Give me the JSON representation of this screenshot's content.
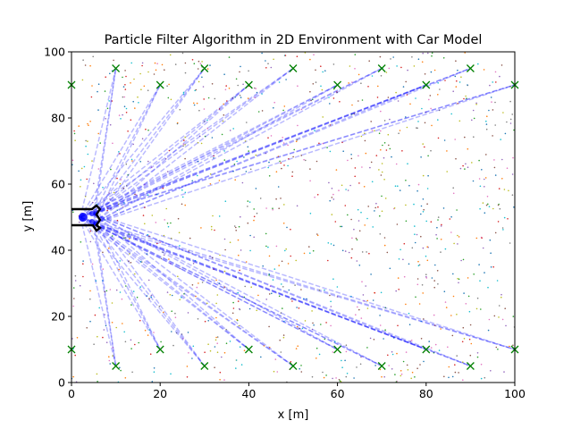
{
  "chart_data": {
    "type": "scatter",
    "title": "Particle Filter Algorithm in 2D Environment with Car Model",
    "xlabel": "x [m]",
    "ylabel": "y [m]",
    "xlim": [
      0,
      100
    ],
    "ylim": [
      0,
      100
    ],
    "xticks": [
      "0",
      "20",
      "40",
      "60",
      "80",
      "100"
    ],
    "yticks": [
      "0",
      "20",
      "40",
      "60",
      "80",
      "100"
    ],
    "grid": false,
    "colors": {
      "landmark": "#008000",
      "ray": "#0000ff",
      "car_outline": "#000000",
      "car_fill": "#0000ff",
      "particle_palette": [
        "#1f77b4",
        "#ff7f0e",
        "#2ca02c",
        "#d62728",
        "#9467bd",
        "#8c564b",
        "#e377c2",
        "#7f7f7f",
        "#bcbd22",
        "#17becf"
      ]
    },
    "landmarks": [
      {
        "x": 0,
        "y": 90
      },
      {
        "x": 10,
        "y": 95
      },
      {
        "x": 20,
        "y": 90
      },
      {
        "x": 30,
        "y": 95
      },
      {
        "x": 40,
        "y": 90
      },
      {
        "x": 50,
        "y": 95
      },
      {
        "x": 60,
        "y": 90
      },
      {
        "x": 70,
        "y": 95
      },
      {
        "x": 80,
        "y": 90
      },
      {
        "x": 90,
        "y": 95
      },
      {
        "x": 100,
        "y": 90
      },
      {
        "x": 0,
        "y": 10
      },
      {
        "x": 10,
        "y": 5
      },
      {
        "x": 20,
        "y": 10
      },
      {
        "x": 30,
        "y": 5
      },
      {
        "x": 40,
        "y": 10
      },
      {
        "x": 50,
        "y": 5
      },
      {
        "x": 60,
        "y": 10
      },
      {
        "x": 70,
        "y": 5
      },
      {
        "x": 80,
        "y": 10
      },
      {
        "x": 90,
        "y": 5
      },
      {
        "x": 100,
        "y": 10
      }
    ],
    "car": {
      "x": 3,
      "y": 50,
      "heading_deg": 0
    },
    "ray_origins": [
      {
        "x": 2,
        "y": 50
      },
      {
        "x": 5,
        "y": 51
      },
      {
        "x": 5,
        "y": 48
      }
    ],
    "particles": {
      "count": 1200,
      "x_range": [
        0,
        100
      ],
      "y_range": [
        0,
        100
      ],
      "distribution": "uniform"
    }
  }
}
